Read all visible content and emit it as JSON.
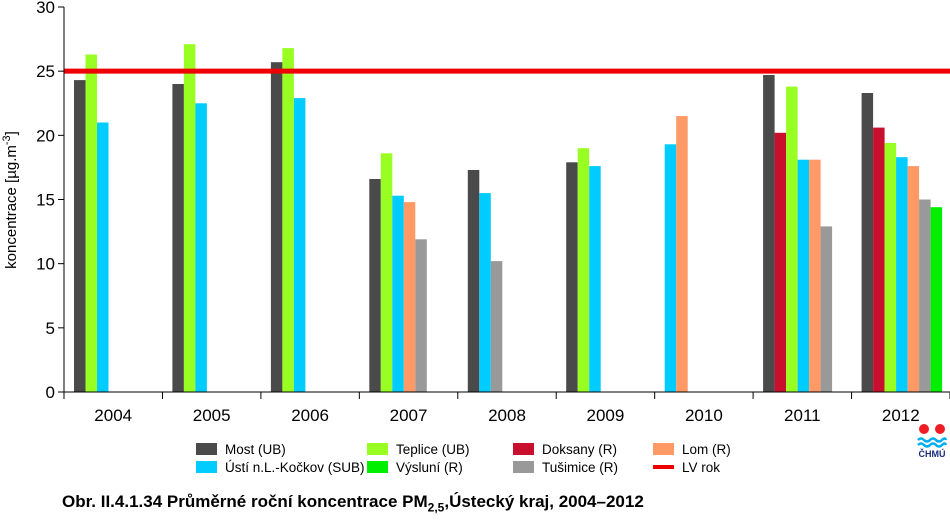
{
  "chart_data": {
    "type": "bar",
    "title": "",
    "xlabel": "",
    "ylabel": "koncentrace [µg.m",
    "ylabel_sup": "-3",
    "ylabel_close": "]",
    "ylim": [
      0,
      30
    ],
    "yticks": [
      0,
      5,
      10,
      15,
      20,
      25,
      30
    ],
    "grid": false,
    "legend_position": "bottom",
    "categories": [
      "2004",
      "2005",
      "2006",
      "2007",
      "2008",
      "2009",
      "2010",
      "2011",
      "2012"
    ],
    "series": [
      {
        "name": "Most (UB)",
        "color": "#4a4a4a",
        "values": [
          24.3,
          24.0,
          25.7,
          16.6,
          17.3,
          17.9,
          null,
          24.7,
          23.3
        ]
      },
      {
        "name": "Doksany (R)",
        "color": "#c8102e",
        "values": [
          null,
          null,
          null,
          null,
          null,
          null,
          null,
          20.2,
          20.6
        ]
      },
      {
        "name": "Teplice (UB)",
        "color": "#99ff22",
        "values": [
          26.3,
          27.1,
          26.8,
          18.6,
          null,
          19.0,
          null,
          23.8,
          19.4
        ]
      },
      {
        "name": "Ústí n.L.-Kočkov (SUB)",
        "color": "#00ccff",
        "values": [
          21.0,
          22.5,
          22.9,
          15.3,
          15.5,
          17.6,
          19.3,
          18.1,
          18.3
        ]
      },
      {
        "name": "Lom (R)",
        "color": "#ff9966",
        "values": [
          null,
          null,
          null,
          14.8,
          null,
          null,
          21.5,
          18.1,
          17.6
        ]
      },
      {
        "name": "Tušimice (R)",
        "color": "#999999",
        "values": [
          null,
          null,
          null,
          11.9,
          10.2,
          null,
          null,
          12.9,
          15.0
        ]
      },
      {
        "name": "Výsluní (R)",
        "color": "#00ee00",
        "values": [
          null,
          null,
          null,
          null,
          null,
          null,
          null,
          null,
          14.4
        ]
      }
    ],
    "limit_line": {
      "name": "LV rok",
      "value": 25,
      "color": "#ee0000"
    },
    "legend_order": [
      "Most (UB)",
      "Teplice (UB)",
      "Doksany (R)",
      "Lom (R)",
      "Ústí n.L.-Kočkov (SUB)",
      "Výsluní (R)",
      "Tušimice (R)",
      "LV rok"
    ]
  },
  "caption": {
    "prefix": "Obr. II.4.1.34  Průměrné roční koncentrace PM",
    "sub": "2,5",
    "suffix": ",Ústecký kraj, 2004–2012"
  },
  "logo": {
    "text": "ČHMÚ",
    "color": "#1a2c7a",
    "accent": "#ee1c25"
  }
}
